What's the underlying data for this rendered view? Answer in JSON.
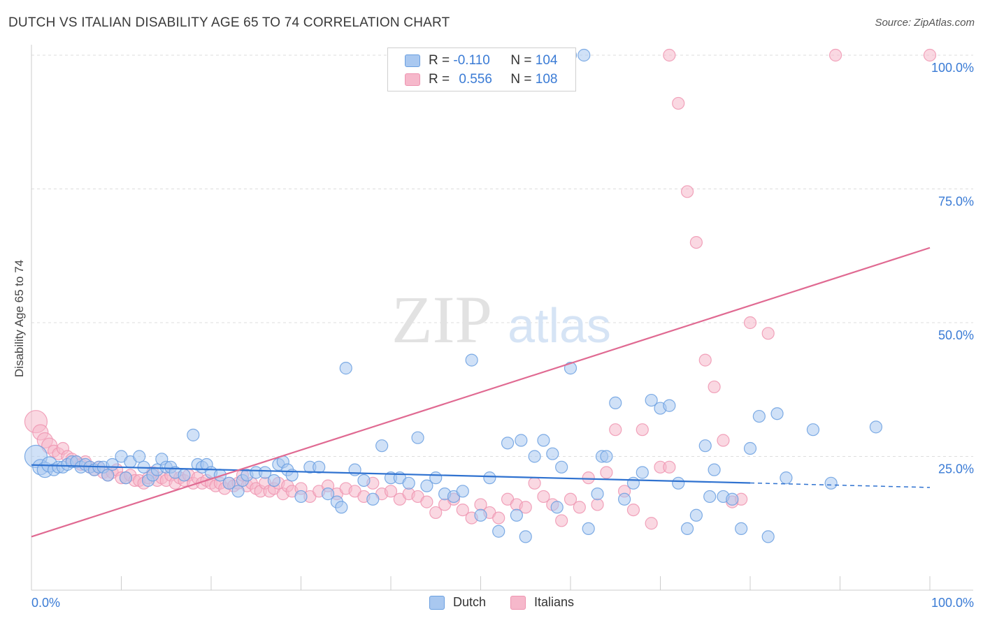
{
  "title": "DUTCH VS ITALIAN DISABILITY AGE 65 TO 74 CORRELATION CHART",
  "source": "Source: ZipAtlas.com",
  "watermark": {
    "zip": "ZIP",
    "atlas": "atlas"
  },
  "legend": {
    "dutch": {
      "r_label": "R =",
      "r_value": "-0.110",
      "n_label": "N =",
      "n_value": "104"
    },
    "italians": {
      "r_label": "R =",
      "r_value": "0.556",
      "n_label": "N =",
      "n_value": "108"
    }
  },
  "bottom_legend": {
    "dutch": "Dutch",
    "italians": "Italians"
  },
  "colors": {
    "dutch_fill": "#a9c8f0",
    "dutch_stroke": "#6a9fe0",
    "dutch_line": "#2f72d0",
    "italian_fill": "#f6b8cb",
    "italian_stroke": "#ee94b0",
    "italian_line": "#e06a92",
    "axis_text": "#3a7bd5",
    "grid": "#dddddd"
  },
  "chart_data": {
    "type": "scatter",
    "title": "DUTCH VS ITALIAN DISABILITY AGE 65 TO 74 CORRELATION CHART",
    "xlabel": "",
    "ylabel": "Disability Age 65 to 74",
    "xlim": [
      0,
      100
    ],
    "ylim": [
      0,
      100
    ],
    "x_tick_labels": [
      "0.0%",
      "100.0%"
    ],
    "y_ticks": [
      25,
      50,
      75,
      100
    ],
    "y_tick_labels": [
      "25.0%",
      "50.0%",
      "75.0%",
      "100.0%"
    ],
    "grid": true,
    "legend_position": "top-center",
    "series": [
      {
        "name": "Dutch",
        "r": -0.11,
        "n": 104,
        "trend": {
          "x0": 0,
          "y0": 23.4,
          "x1": 100,
          "y1": 19.2,
          "solid_until_x": 80
        },
        "points": [
          [
            0.5,
            25
          ],
          [
            1,
            23
          ],
          [
            1.5,
            22.5
          ],
          [
            2,
            23.5
          ],
          [
            2.5,
            22.5
          ],
          [
            3,
            23
          ],
          [
            3.5,
            23
          ],
          [
            4,
            23.5
          ],
          [
            4.5,
            24
          ],
          [
            5,
            24
          ],
          [
            5.5,
            23
          ],
          [
            6,
            23.5
          ],
          [
            6.5,
            23
          ],
          [
            7,
            22.5
          ],
          [
            7.5,
            23
          ],
          [
            8,
            23
          ],
          [
            8.5,
            21.5
          ],
          [
            9,
            23.5
          ],
          [
            10,
            25
          ],
          [
            10.5,
            21
          ],
          [
            11,
            24
          ],
          [
            12,
            25
          ],
          [
            12.5,
            23
          ],
          [
            13,
            20.5
          ],
          [
            13.5,
            21.5
          ],
          [
            14,
            22.5
          ],
          [
            14.5,
            24.5
          ],
          [
            15,
            23
          ],
          [
            15.5,
            23
          ],
          [
            16,
            22
          ],
          [
            17,
            21.5
          ],
          [
            18,
            29
          ],
          [
            18.5,
            23.5
          ],
          [
            19,
            23
          ],
          [
            19.5,
            23.5
          ],
          [
            20,
            22
          ],
          [
            21,
            21.5
          ],
          [
            22,
            20
          ],
          [
            23,
            18.5
          ],
          [
            23.5,
            20.5
          ],
          [
            24,
            21.5
          ],
          [
            25,
            22
          ],
          [
            26,
            22
          ],
          [
            27,
            20.5
          ],
          [
            27.5,
            23.5
          ],
          [
            28,
            24
          ],
          [
            28.5,
            22.5
          ],
          [
            29,
            21.5
          ],
          [
            30,
            17.5
          ],
          [
            31,
            23
          ],
          [
            32,
            23
          ],
          [
            33,
            18
          ],
          [
            34,
            16.5
          ],
          [
            34.5,
            15.5
          ],
          [
            35,
            41.5
          ],
          [
            36,
            22.5
          ],
          [
            37,
            20.5
          ],
          [
            38,
            17
          ],
          [
            39,
            27
          ],
          [
            40,
            21
          ],
          [
            41,
            21
          ],
          [
            42,
            20
          ],
          [
            43,
            28.5
          ],
          [
            44,
            19.5
          ],
          [
            45,
            21
          ],
          [
            46,
            18
          ],
          [
            47,
            17.5
          ],
          [
            48,
            18.5
          ],
          [
            49,
            43
          ],
          [
            50,
            14
          ],
          [
            51,
            21
          ],
          [
            52,
            11
          ],
          [
            53,
            27.5
          ],
          [
            54,
            14
          ],
          [
            54.5,
            28
          ],
          [
            55,
            10
          ],
          [
            56,
            25
          ],
          [
            57,
            28
          ],
          [
            58,
            25.5
          ],
          [
            58.5,
            15.5
          ],
          [
            59,
            23
          ],
          [
            60,
            41.5
          ],
          [
            62,
            11.5
          ],
          [
            63,
            18
          ],
          [
            63.5,
            25
          ],
          [
            64,
            25
          ],
          [
            65,
            35
          ],
          [
            66,
            17
          ],
          [
            67,
            20
          ],
          [
            68,
            22
          ],
          [
            69,
            35.5
          ],
          [
            70,
            34
          ],
          [
            71,
            34.5
          ],
          [
            72,
            20
          ],
          [
            73,
            11.5
          ],
          [
            74,
            14
          ],
          [
            75,
            27
          ],
          [
            75.5,
            17.5
          ],
          [
            76,
            22.5
          ],
          [
            77,
            17.5
          ],
          [
            78,
            17
          ],
          [
            79,
            11.5
          ],
          [
            80,
            26.5
          ],
          [
            81,
            32.5
          ],
          [
            82,
            10
          ],
          [
            83,
            33
          ],
          [
            84,
            21
          ],
          [
            87,
            30
          ],
          [
            89,
            20
          ],
          [
            94,
            30.5
          ]
        ]
      },
      {
        "name": "Italians",
        "r": 0.556,
        "n": 108,
        "trend": {
          "x0": 0,
          "y0": 10,
          "x1": 100,
          "y1": 64
        },
        "points": [
          [
            0.5,
            31.5
          ],
          [
            1,
            29.5
          ],
          [
            1.5,
            28
          ],
          [
            2,
            27
          ],
          [
            2.5,
            26
          ],
          [
            3,
            25.5
          ],
          [
            3.5,
            26.5
          ],
          [
            4,
            25
          ],
          [
            4.5,
            24.5
          ],
          [
            5,
            24
          ],
          [
            5.5,
            23.5
          ],
          [
            6,
            24
          ],
          [
            6.5,
            23
          ],
          [
            7,
            22.5
          ],
          [
            7.5,
            23
          ],
          [
            8,
            22
          ],
          [
            8.5,
            21.5
          ],
          [
            9,
            22
          ],
          [
            9.5,
            22.5
          ],
          [
            10,
            21
          ],
          [
            10.5,
            21
          ],
          [
            11,
            21.5
          ],
          [
            11.5,
            20.5
          ],
          [
            12,
            20.5
          ],
          [
            12.5,
            20
          ],
          [
            13,
            21
          ],
          [
            13.5,
            22
          ],
          [
            14,
            20.5
          ],
          [
            14.5,
            21
          ],
          [
            15,
            20.5
          ],
          [
            15.5,
            21.5
          ],
          [
            16,
            20
          ],
          [
            16.5,
            21
          ],
          [
            17,
            20.5
          ],
          [
            17.5,
            21.5
          ],
          [
            18,
            20
          ],
          [
            18.5,
            21
          ],
          [
            19,
            20
          ],
          [
            19.5,
            20.5
          ],
          [
            20,
            20
          ],
          [
            20.5,
            19.5
          ],
          [
            21,
            20
          ],
          [
            21.5,
            19
          ],
          [
            22,
            20
          ],
          [
            22.5,
            19.5
          ],
          [
            23,
            20
          ],
          [
            23.5,
            21.5
          ],
          [
            24,
            19.5
          ],
          [
            24.5,
            20
          ],
          [
            25,
            19
          ],
          [
            25.5,
            18.5
          ],
          [
            26,
            20
          ],
          [
            26.5,
            18.5
          ],
          [
            27,
            19
          ],
          [
            27.5,
            20
          ],
          [
            28,
            18
          ],
          [
            28.5,
            19.5
          ],
          [
            29,
            18.5
          ],
          [
            30,
            19
          ],
          [
            31,
            17.5
          ],
          [
            32,
            18.5
          ],
          [
            33,
            19.5
          ],
          [
            34,
            18
          ],
          [
            35,
            19
          ],
          [
            36,
            18.5
          ],
          [
            37,
            17.5
          ],
          [
            38,
            20
          ],
          [
            39,
            18
          ],
          [
            40,
            18.5
          ],
          [
            41,
            17
          ],
          [
            42,
            18
          ],
          [
            43,
            17.5
          ],
          [
            44,
            16.5
          ],
          [
            45,
            14.5
          ],
          [
            46,
            16
          ],
          [
            47,
            17
          ],
          [
            48,
            15
          ],
          [
            49,
            13.5
          ],
          [
            50,
            16
          ],
          [
            51,
            14.5
          ],
          [
            52,
            13.5
          ],
          [
            53,
            17
          ],
          [
            54,
            16
          ],
          [
            55,
            15.5
          ],
          [
            56,
            20
          ],
          [
            57,
            17.5
          ],
          [
            58,
            16
          ],
          [
            59,
            13
          ],
          [
            60,
            17
          ],
          [
            61,
            15.5
          ],
          [
            62,
            21
          ],
          [
            63,
            16
          ],
          [
            64,
            22
          ],
          [
            65,
            30
          ],
          [
            66,
            18.5
          ],
          [
            67,
            15
          ],
          [
            68,
            30
          ],
          [
            69,
            12.5
          ],
          [
            70,
            23
          ],
          [
            71,
            23
          ],
          [
            72,
            91
          ],
          [
            73,
            74.5
          ],
          [
            74,
            65
          ],
          [
            75,
            43
          ],
          [
            76,
            38
          ],
          [
            77,
            28
          ],
          [
            78,
            16.5
          ],
          [
            79,
            17
          ],
          [
            80,
            50
          ],
          [
            82,
            48
          ]
        ]
      }
    ],
    "extra_top_points": {
      "dutch": [
        [
          60,
          100
        ],
        [
          61.5,
          100
        ]
      ],
      "italians": [
        [
          56,
          100
        ],
        [
          71,
          100
        ],
        [
          89.5,
          100
        ],
        [
          100,
          100
        ]
      ]
    }
  }
}
